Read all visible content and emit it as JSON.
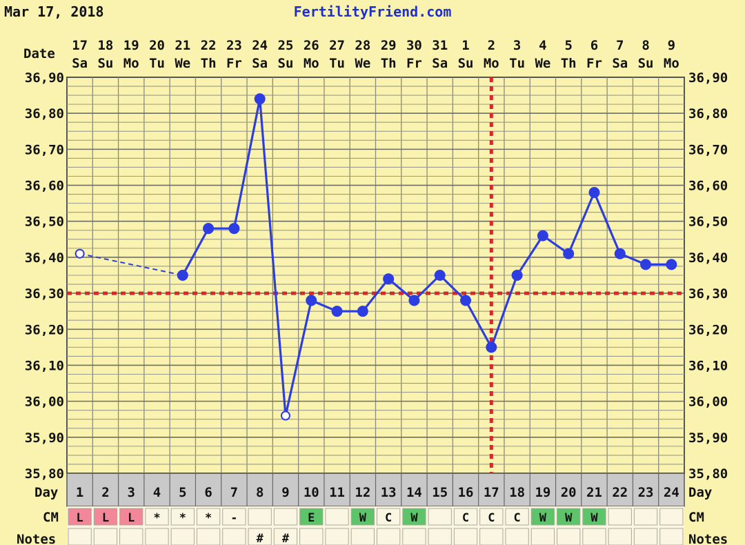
{
  "header": {
    "date": "Mar 17, 2018",
    "site": "FertilityFriend.com"
  },
  "labels": {
    "date": "Date",
    "day": "Day",
    "cm": "CM",
    "notes": "Notes"
  },
  "chart_data": {
    "type": "line",
    "ylim": [
      35.8,
      36.9
    ],
    "y_ticks": [
      "36,90",
      "36,80",
      "36,70",
      "36,60",
      "36,50",
      "36,40",
      "36,30",
      "36,20",
      "36,10",
      "36,00",
      "35,90",
      "35,80"
    ],
    "grid": true,
    "cycle_days": [
      "1",
      "2",
      "3",
      "4",
      "5",
      "6",
      "7",
      "8",
      "9",
      "10",
      "11",
      "12",
      "13",
      "14",
      "15",
      "16",
      "17",
      "18",
      "19",
      "20",
      "21",
      "22",
      "23",
      "24"
    ],
    "dates": [
      "17",
      "18",
      "19",
      "20",
      "21",
      "22",
      "23",
      "24",
      "25",
      "26",
      "27",
      "28",
      "29",
      "30",
      "31",
      "1",
      "2",
      "3",
      "4",
      "5",
      "6",
      "7",
      "8",
      "9"
    ],
    "weekdays": [
      "Sa",
      "Su",
      "Mo",
      "Tu",
      "We",
      "Th",
      "Fr",
      "Sa",
      "Su",
      "Mo",
      "Tu",
      "We",
      "Th",
      "Fr",
      "Sa",
      "Su",
      "Mo",
      "Tu",
      "We",
      "Th",
      "Fr",
      "Sa",
      "Su",
      "Mo"
    ],
    "temperatures": [
      36.41,
      null,
      null,
      null,
      36.35,
      36.48,
      36.48,
      36.84,
      35.96,
      36.28,
      36.25,
      36.25,
      36.34,
      36.28,
      36.35,
      36.28,
      36.15,
      36.35,
      36.46,
      36.41,
      36.58,
      36.41,
      36.38,
      36.38
    ],
    "open_points": [
      1,
      9
    ],
    "coverline": 36.3,
    "ovulation_day": 17,
    "line_color": "#2D3DE0",
    "marker_color": "#2D3DE0",
    "reference_color": "#D42A2A",
    "cm": [
      "L",
      "L",
      "L",
      "*",
      "*",
      "*",
      "-",
      "",
      "",
      "E",
      "",
      "W",
      "C",
      "W",
      "",
      "C",
      "C",
      "C",
      "W",
      "W",
      "W",
      "",
      "",
      ""
    ],
    "cm_colors": {
      "L": "#F2879A",
      "E": "#5DC46A",
      "W": "#5DC46A"
    },
    "notes": [
      "",
      "",
      "",
      "",
      "",
      "",
      "",
      "#",
      "#",
      "",
      "",
      "",
      "",
      "",
      "",
      "",
      "",
      "",
      "",
      "",
      "",
      "",
      "",
      ""
    ]
  }
}
